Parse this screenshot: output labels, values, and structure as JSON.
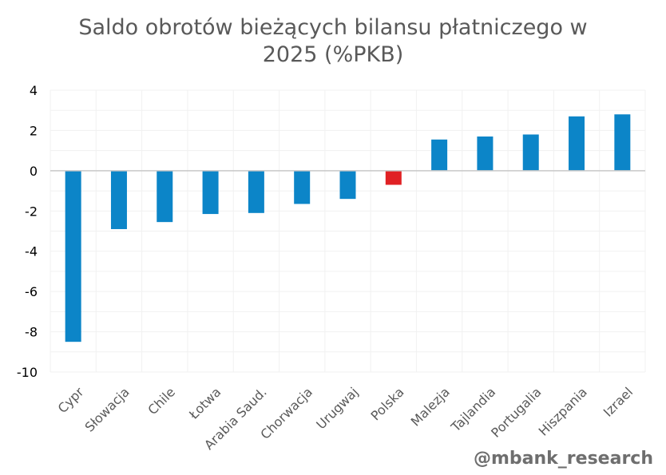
{
  "chart_data": {
    "type": "bar",
    "title_line1": "Saldo obrotów bieżących bilansu płatniczego w",
    "title_line2": "2025 (%PKB)",
    "categories": [
      "Cypr",
      "Słowacja",
      "Chile",
      "Łotwa",
      "Arabia Saud.",
      "Chorwacja",
      "Urugwaj",
      "Polska",
      "Malezja",
      "Tajlandia",
      "Portugalia",
      "Hiszpania",
      "Izrael"
    ],
    "values": [
      -8.5,
      -2.9,
      -2.55,
      -2.15,
      -2.1,
      -1.65,
      -1.4,
      -0.7,
      1.55,
      1.7,
      1.8,
      2.7,
      2.8
    ],
    "ylim": [
      -10,
      4
    ],
    "yticks": [
      -10,
      -8,
      -6,
      -4,
      -2,
      0,
      2,
      4
    ],
    "xlabel": "",
    "ylabel": "",
    "grid": true,
    "colors": {
      "default": "#0c85c8",
      "highlight": "#e02124",
      "highlight_category": "Polska"
    }
  },
  "watermark": "@mbank_research"
}
